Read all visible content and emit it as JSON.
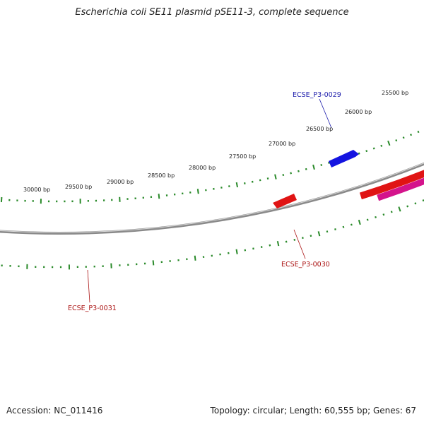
{
  "title": "Escherichia coli SE11 plasmid pSE11-3, complete sequence",
  "footer": {
    "accession": "Accession: NC_011416",
    "summary": "Topology: circular; Length: 60,555 bp; Genes: 67"
  },
  "scale_labels": [
    "25500 bp",
    "26000 bp",
    "26500 bp",
    "27000 bp",
    "27500 bp",
    "28000 bp",
    "28500 bp",
    "29000 bp",
    "29500 bp",
    "30000 bp"
  ],
  "gene_labels": [
    {
      "text": "ECSE_P3-0029",
      "color": "#1a1aaa"
    },
    {
      "text": "ECSE_P3-0030",
      "color": "#aa1111"
    },
    {
      "text": "ECSE_P3-0031",
      "color": "#aa1111"
    }
  ],
  "colors": {
    "backbone": "#8a8a8a",
    "forward_strand": "#1414e0",
    "reverse_strand": "#e01414",
    "ticks": "#2a8a2a",
    "pink_feature": "#d4148c",
    "dark_green_feature": "#2e7d1e",
    "light_green_feature": "#b8f048"
  }
}
